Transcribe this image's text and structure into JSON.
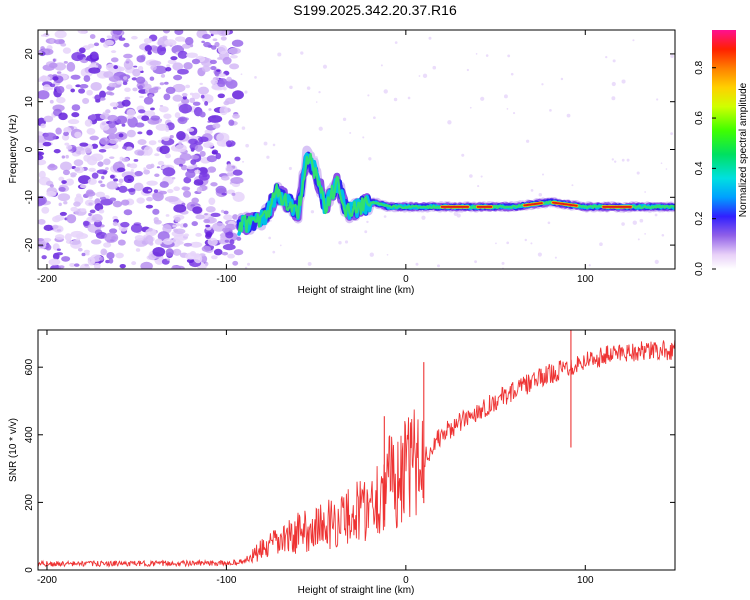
{
  "title": "S199.2025.342.20.37.R16",
  "chart_data": [
    {
      "type": "heatmap",
      "name": "spectrogram",
      "xlabel": "Height of straight line (km)",
      "ylabel": "Frequency (Hz)",
      "xlim": [
        -205,
        150
      ],
      "ylim": [
        -25,
        25
      ],
      "xticks": [
        -200,
        -100,
        0,
        100
      ],
      "yticks": [
        -20,
        -10,
        0,
        10,
        20
      ],
      "noise_region": {
        "x_from": -205,
        "x_to": -93
      },
      "ridge": [
        {
          "x": -93,
          "y": -16
        },
        {
          "x": -85,
          "y": -15
        },
        {
          "x": -78,
          "y": -14
        },
        {
          "x": -72,
          "y": -9
        },
        {
          "x": -66,
          "y": -11
        },
        {
          "x": -60,
          "y": -13
        },
        {
          "x": -55,
          "y": -1
        },
        {
          "x": -50,
          "y": -5
        },
        {
          "x": -45,
          "y": -12
        },
        {
          "x": -38,
          "y": -7
        },
        {
          "x": -33,
          "y": -13
        },
        {
          "x": -25,
          "y": -12
        },
        {
          "x": -18,
          "y": -11
        },
        {
          "x": -10,
          "y": -12
        },
        {
          "x": 0,
          "y": -12
        },
        {
          "x": 20,
          "y": -12
        },
        {
          "x": 60,
          "y": -12
        },
        {
          "x": 80,
          "y": -11
        },
        {
          "x": 100,
          "y": -12
        },
        {
          "x": 150,
          "y": -12
        }
      ],
      "colorbar": {
        "label": "Normalized spectral amplitude",
        "range": [
          0,
          0.95
        ],
        "ticks": [
          0.0,
          0.2,
          0.4,
          0.6,
          0.8
        ]
      }
    },
    {
      "type": "line",
      "name": "snr",
      "xlabel": "Height of straight line (km)",
      "ylabel": "SNR (10 * v/v)",
      "xlim": [
        -205,
        150
      ],
      "ylim": [
        0,
        710
      ],
      "xticks": [
        -200,
        -100,
        0,
        100
      ],
      "yticks": [
        0,
        200,
        400,
        600
      ],
      "color": "#ee3333",
      "trend": [
        {
          "x": -205,
          "y": 18
        },
        {
          "x": -100,
          "y": 20
        },
        {
          "x": -90,
          "y": 25
        },
        {
          "x": -80,
          "y": 60
        },
        {
          "x": -60,
          "y": 110
        },
        {
          "x": -40,
          "y": 140
        },
        {
          "x": -20,
          "y": 190
        },
        {
          "x": -10,
          "y": 260
        },
        {
          "x": 0,
          "y": 290
        },
        {
          "x": 10,
          "y": 330
        },
        {
          "x": 20,
          "y": 400
        },
        {
          "x": 40,
          "y": 470
        },
        {
          "x": 60,
          "y": 530
        },
        {
          "x": 80,
          "y": 580
        },
        {
          "x": 100,
          "y": 620
        },
        {
          "x": 120,
          "y": 645
        },
        {
          "x": 150,
          "y": 650
        }
      ],
      "spikes": [
        {
          "x": -12,
          "y": 455
        },
        {
          "x": 10,
          "y": 615
        },
        {
          "x": 92,
          "y": 710
        }
      ]
    }
  ]
}
